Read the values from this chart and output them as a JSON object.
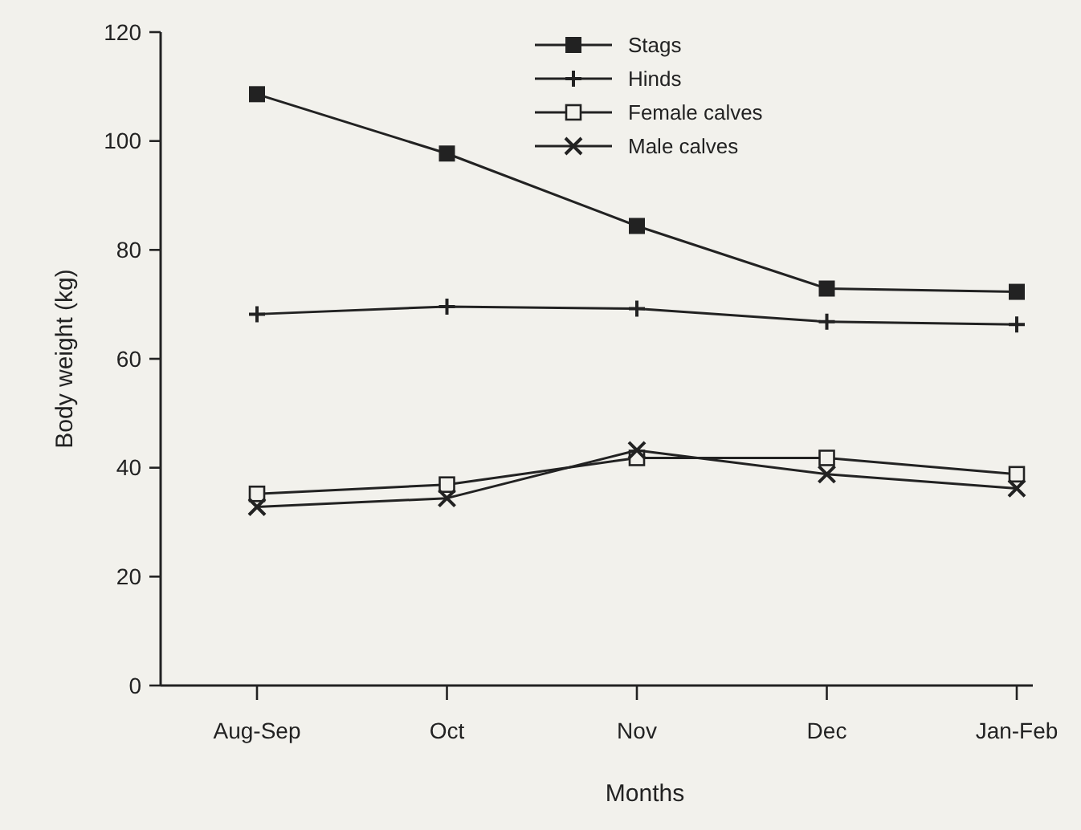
{
  "chart_data": {
    "type": "line",
    "xlabel": "Months",
    "ylabel": "Body weight (kg)",
    "categories": [
      "Aug-Sep",
      "Oct",
      "Nov",
      "Dec",
      "Jan-Feb"
    ],
    "ylim": [
      0,
      120
    ],
    "yticks": [
      0,
      20,
      40,
      60,
      80,
      100,
      120
    ],
    "legend": "top right",
    "line_style": "solid",
    "grid": false,
    "series": [
      {
        "name": "Stags",
        "color": "#222222",
        "marker": "square",
        "values": [
          108.6,
          97.7,
          84.4,
          72.9,
          72.3
        ]
      },
      {
        "name": "Hinds",
        "color": "#222222",
        "marker": "cross",
        "values": [
          68.2,
          69.6,
          69.2,
          66.8,
          66.3
        ]
      },
      {
        "name": "Female calves",
        "color": "#222222",
        "marker": "square-open",
        "values": [
          35.2,
          36.9,
          41.8,
          41.8,
          38.8
        ]
      },
      {
        "name": "Male calves",
        "color": "#222222",
        "marker": "x",
        "values": [
          32.8,
          34.4,
          43.2,
          38.8,
          36.2
        ]
      }
    ]
  }
}
